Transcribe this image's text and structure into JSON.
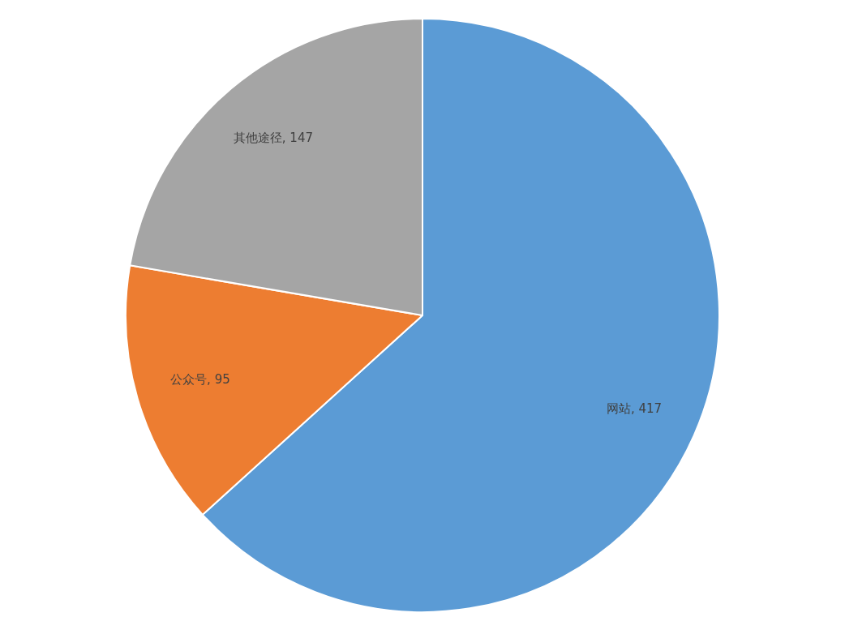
{
  "chart_data": {
    "type": "pie",
    "categories": [
      "网站",
      "公众号",
      "其他途径"
    ],
    "values": [
      417,
      95,
      147
    ],
    "value_labels": [
      ", 417",
      ", 95",
      ", 147"
    ],
    "colors": [
      "#5b9bd5",
      "#ed7d31",
      "#a5a5a5"
    ],
    "legend": false
  }
}
